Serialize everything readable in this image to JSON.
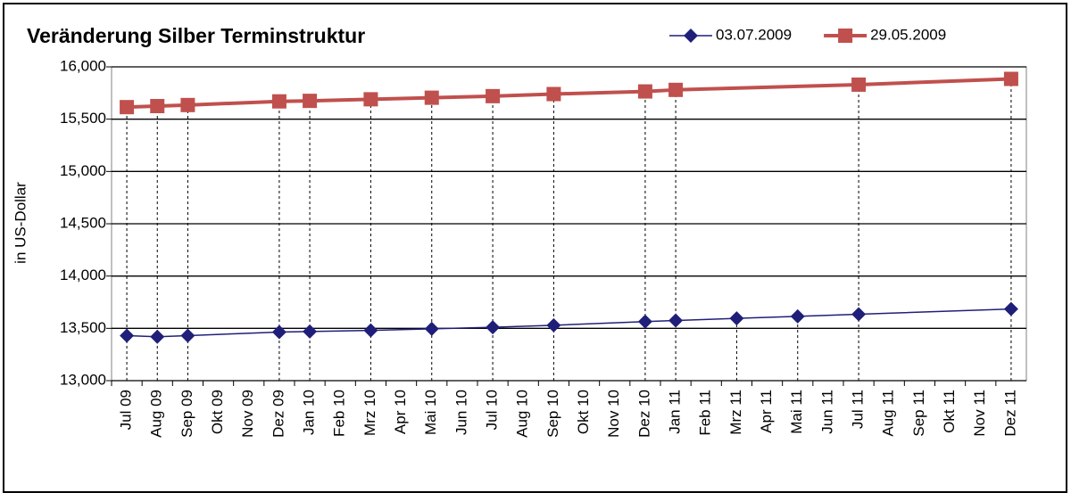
{
  "chart_data": {
    "type": "line",
    "title": "Veränderung Silber Terminstruktur",
    "y_label": "in US-Dollar",
    "categories": [
      "Jul 09",
      "Aug 09",
      "Sep 09",
      "Okt 09",
      "Nov 09",
      "Dez 09",
      "Jan 10",
      "Feb 10",
      "Mrz 10",
      "Apr 10",
      "Mai 10",
      "Jun 10",
      "Jul 10",
      "Aug 10",
      "Sep 10",
      "Okt 10",
      "Nov 10",
      "Dez 10",
      "Jan 11",
      "Feb 11",
      "Mrz 11",
      "Apr 11",
      "Mai 11",
      "Jun 11",
      "Jul 11",
      "Aug 11",
      "Sep 11",
      "Okt 11",
      "Nov 11",
      "Dez 11"
    ],
    "series": [
      {
        "name": "03.07.2009",
        "color": "#1f1f7a",
        "marker": "diamond",
        "x": [
          "Jul 09",
          "Aug 09",
          "Sep 09",
          "Dez 09",
          "Jan 10",
          "Mrz 10",
          "Mai 10",
          "Jul 10",
          "Sep 10",
          "Dez 10",
          "Jan 11",
          "Mrz 11",
          "Mai 11",
          "Jul 11",
          "Dez 11"
        ],
        "values": [
          13430,
          13420,
          13430,
          13465,
          13470,
          13480,
          13495,
          13510,
          13530,
          13565,
          13575,
          13595,
          13615,
          13635,
          13685
        ]
      },
      {
        "name": "29.05.2009",
        "color": "#c0504d",
        "marker": "square",
        "x": [
          "Jul 09",
          "Aug 09",
          "Sep 09",
          "Dez 09",
          "Jan 10",
          "Mrz 10",
          "Mai 10",
          "Jul 10",
          "Sep 10",
          "Dez 10",
          "Jan 11",
          "Jul 11",
          "Dez 11"
        ],
        "values": [
          15615,
          15625,
          15635,
          15670,
          15675,
          15690,
          15705,
          15720,
          15740,
          15765,
          15780,
          15830,
          15885
        ]
      }
    ],
    "ylim": [
      13000,
      16000
    ],
    "yticks": [
      {
        "value": 13000,
        "label": "13,000"
      },
      {
        "value": 13500,
        "label": "13,500"
      },
      {
        "value": 14000,
        "label": "14,000"
      },
      {
        "value": 14500,
        "label": "14,500"
      },
      {
        "value": 15000,
        "label": "15,000"
      },
      {
        "value": 15500,
        "label": "15,500"
      },
      {
        "value": 16000,
        "label": "16,000"
      }
    ],
    "grid": true,
    "drop_lines": true,
    "legend": "top-right"
  }
}
